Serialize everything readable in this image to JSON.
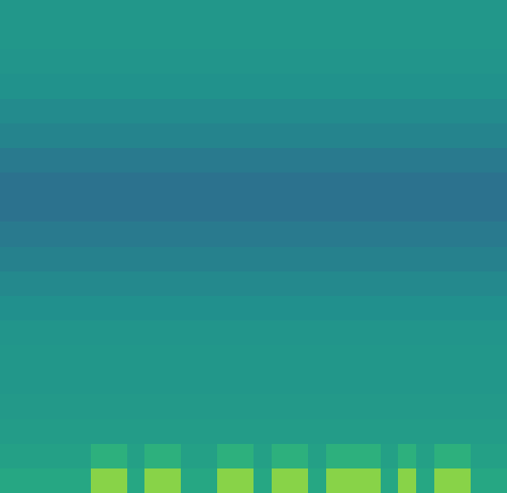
{
  "chart_data": {
    "type": "heatmap",
    "tick_labels": false,
    "zlim": [
      0,
      1
    ],
    "cells": [
      [
        0.53,
        0.53,
        0.53,
        0.53,
        0.53,
        0.53,
        0.53,
        0.53,
        0.53,
        0.53,
        0.53,
        0.53,
        0.53,
        0.53,
        0.53,
        0.53,
        0.53,
        0.53,
        0.53,
        0.53,
        0.53,
        0.53,
        0.53,
        0.53,
        0.53,
        0.53,
        0.53,
        0.53
      ],
      [
        0.53,
        0.53,
        0.53,
        0.53,
        0.53,
        0.53,
        0.53,
        0.53,
        0.53,
        0.53,
        0.53,
        0.53,
        0.53,
        0.53,
        0.53,
        0.53,
        0.53,
        0.53,
        0.53,
        0.53,
        0.53,
        0.53,
        0.53,
        0.53,
        0.53,
        0.53,
        0.53,
        0.53
      ],
      [
        0.52,
        0.52,
        0.52,
        0.52,
        0.52,
        0.52,
        0.52,
        0.52,
        0.52,
        0.52,
        0.52,
        0.52,
        0.52,
        0.52,
        0.52,
        0.52,
        0.52,
        0.52,
        0.52,
        0.52,
        0.52,
        0.52,
        0.52,
        0.52,
        0.52,
        0.52,
        0.52,
        0.52
      ],
      [
        0.51,
        0.51,
        0.51,
        0.51,
        0.51,
        0.51,
        0.51,
        0.51,
        0.51,
        0.51,
        0.51,
        0.51,
        0.51,
        0.51,
        0.51,
        0.51,
        0.51,
        0.51,
        0.51,
        0.51,
        0.51,
        0.51,
        0.51,
        0.51,
        0.51,
        0.51,
        0.51,
        0.51
      ],
      [
        0.48,
        0.48,
        0.48,
        0.48,
        0.48,
        0.48,
        0.48,
        0.48,
        0.48,
        0.48,
        0.48,
        0.48,
        0.48,
        0.48,
        0.48,
        0.48,
        0.48,
        0.48,
        0.48,
        0.48,
        0.48,
        0.48,
        0.48,
        0.48,
        0.48,
        0.48,
        0.48,
        0.48
      ],
      [
        0.45,
        0.45,
        0.45,
        0.45,
        0.45,
        0.45,
        0.45,
        0.45,
        0.45,
        0.45,
        0.45,
        0.45,
        0.45,
        0.45,
        0.45,
        0.45,
        0.45,
        0.45,
        0.45,
        0.45,
        0.45,
        0.45,
        0.45,
        0.45,
        0.45,
        0.45,
        0.45,
        0.45
      ],
      [
        0.41,
        0.41,
        0.41,
        0.41,
        0.41,
        0.41,
        0.41,
        0.41,
        0.41,
        0.41,
        0.41,
        0.41,
        0.41,
        0.41,
        0.41,
        0.41,
        0.41,
        0.41,
        0.41,
        0.41,
        0.41,
        0.41,
        0.41,
        0.41,
        0.41,
        0.41,
        0.41,
        0.41
      ],
      [
        0.38,
        0.38,
        0.38,
        0.38,
        0.38,
        0.38,
        0.38,
        0.38,
        0.38,
        0.38,
        0.38,
        0.38,
        0.38,
        0.38,
        0.38,
        0.38,
        0.38,
        0.38,
        0.38,
        0.38,
        0.38,
        0.38,
        0.38,
        0.38,
        0.38,
        0.38,
        0.38,
        0.38
      ],
      [
        0.38,
        0.38,
        0.38,
        0.38,
        0.38,
        0.38,
        0.38,
        0.38,
        0.38,
        0.38,
        0.38,
        0.38,
        0.38,
        0.38,
        0.38,
        0.38,
        0.38,
        0.38,
        0.38,
        0.38,
        0.38,
        0.38,
        0.38,
        0.38,
        0.38,
        0.38,
        0.38,
        0.38
      ],
      [
        0.41,
        0.41,
        0.41,
        0.41,
        0.41,
        0.41,
        0.41,
        0.41,
        0.41,
        0.41,
        0.41,
        0.41,
        0.41,
        0.41,
        0.41,
        0.41,
        0.41,
        0.41,
        0.41,
        0.41,
        0.41,
        0.41,
        0.41,
        0.41,
        0.41,
        0.41,
        0.41,
        0.41
      ],
      [
        0.44,
        0.44,
        0.44,
        0.44,
        0.44,
        0.44,
        0.44,
        0.44,
        0.44,
        0.44,
        0.44,
        0.44,
        0.44,
        0.44,
        0.44,
        0.44,
        0.44,
        0.44,
        0.44,
        0.44,
        0.44,
        0.44,
        0.44,
        0.44,
        0.44,
        0.44,
        0.44,
        0.44
      ],
      [
        0.47,
        0.47,
        0.47,
        0.47,
        0.47,
        0.47,
        0.47,
        0.47,
        0.47,
        0.47,
        0.47,
        0.47,
        0.47,
        0.47,
        0.47,
        0.47,
        0.47,
        0.47,
        0.47,
        0.47,
        0.47,
        0.47,
        0.47,
        0.47,
        0.47,
        0.47,
        0.47,
        0.47
      ],
      [
        0.5,
        0.5,
        0.5,
        0.5,
        0.5,
        0.5,
        0.5,
        0.5,
        0.5,
        0.5,
        0.5,
        0.5,
        0.5,
        0.5,
        0.5,
        0.5,
        0.5,
        0.5,
        0.5,
        0.5,
        0.5,
        0.5,
        0.5,
        0.5,
        0.5,
        0.5,
        0.5,
        0.5
      ],
      [
        0.52,
        0.52,
        0.52,
        0.52,
        0.52,
        0.52,
        0.52,
        0.52,
        0.52,
        0.52,
        0.52,
        0.52,
        0.52,
        0.52,
        0.52,
        0.52,
        0.52,
        0.52,
        0.52,
        0.52,
        0.52,
        0.52,
        0.52,
        0.52,
        0.52,
        0.52,
        0.52,
        0.52
      ],
      [
        0.53,
        0.53,
        0.53,
        0.53,
        0.53,
        0.53,
        0.53,
        0.53,
        0.53,
        0.53,
        0.53,
        0.53,
        0.53,
        0.53,
        0.53,
        0.53,
        0.53,
        0.53,
        0.53,
        0.53,
        0.53,
        0.53,
        0.53,
        0.53,
        0.53,
        0.53,
        0.53,
        0.53
      ],
      [
        0.53,
        0.53,
        0.53,
        0.53,
        0.53,
        0.53,
        0.53,
        0.53,
        0.53,
        0.53,
        0.53,
        0.53,
        0.53,
        0.53,
        0.53,
        0.53,
        0.53,
        0.53,
        0.53,
        0.53,
        0.53,
        0.53,
        0.53,
        0.53,
        0.53,
        0.53,
        0.53,
        0.53
      ],
      [
        0.54,
        0.54,
        0.54,
        0.54,
        0.54,
        0.54,
        0.54,
        0.54,
        0.54,
        0.54,
        0.54,
        0.54,
        0.54,
        0.54,
        0.54,
        0.54,
        0.54,
        0.54,
        0.54,
        0.54,
        0.54,
        0.54,
        0.54,
        0.54,
        0.54,
        0.54,
        0.54,
        0.54
      ],
      [
        0.55,
        0.55,
        0.55,
        0.55,
        0.55,
        0.55,
        0.55,
        0.55,
        0.55,
        0.55,
        0.55,
        0.55,
        0.55,
        0.55,
        0.55,
        0.55,
        0.55,
        0.55,
        0.55,
        0.55,
        0.55,
        0.55,
        0.55,
        0.55,
        0.55,
        0.55,
        0.55,
        0.55
      ],
      [
        0.57,
        0.57,
        0.57,
        0.57,
        0.57,
        0.64,
        0.64,
        0.57,
        0.64,
        0.64,
        0.57,
        0.57,
        0.64,
        0.64,
        0.57,
        0.64,
        0.64,
        0.57,
        0.64,
        0.64,
        0.64,
        0.57,
        0.64,
        0.57,
        0.64,
        0.64,
        0.57,
        0.57
      ],
      [
        0.6,
        0.6,
        0.6,
        0.6,
        0.6,
        0.82,
        0.82,
        0.6,
        0.82,
        0.82,
        0.6,
        0.6,
        0.82,
        0.82,
        0.6,
        0.82,
        0.82,
        0.6,
        0.82,
        0.82,
        0.82,
        0.6,
        0.82,
        0.6,
        0.82,
        0.82,
        0.6,
        0.6
      ]
    ]
  }
}
